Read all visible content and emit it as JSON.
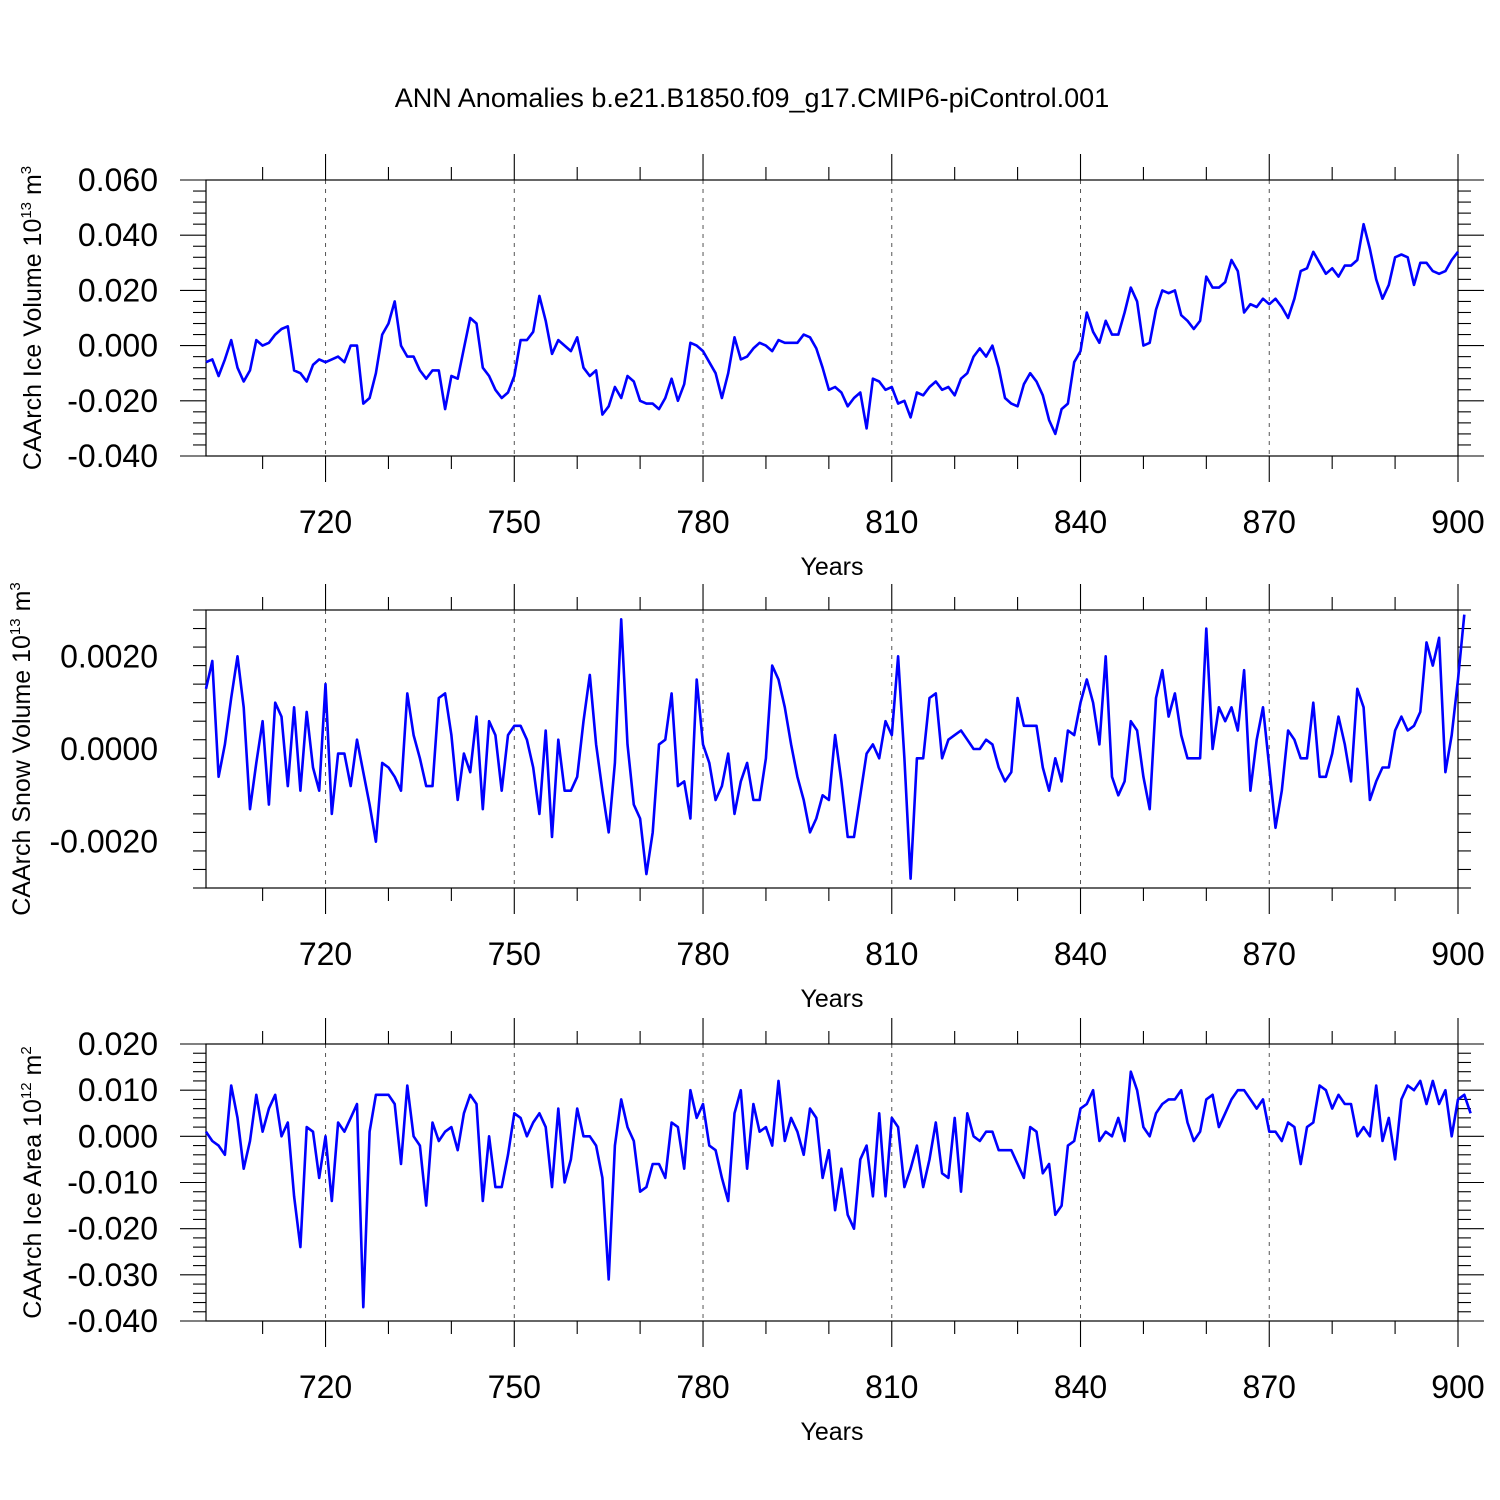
{
  "chart_data": {
    "title": "ANN Anomalies b.e21.B1850.f09_g17.CMIP6-piControl.001",
    "series_color": "#0000ff",
    "x_start": 701,
    "x_end": 900,
    "x_step": 1,
    "panels": [
      {
        "type": "line",
        "ylabel": "CAArch Ice Volume 10",
        "yunit_exp": "13",
        "yunit_tail": " m",
        "yunit_pow": "3",
        "xlabel": "Years",
        "xlim": [
          701,
          900
        ],
        "ylim": [
          -0.04,
          0.06
        ],
        "yticks": [
          -0.04,
          -0.02,
          0.0,
          0.02,
          0.04,
          0.06
        ],
        "ytick_labels": [
          "-0.040",
          "-0.020",
          "0.000",
          "0.020",
          "0.040",
          "0.060"
        ],
        "xticks": [
          720,
          750,
          780,
          810,
          840,
          870,
          900
        ],
        "xtick_labels": [
          "720",
          "750",
          "780",
          "810",
          "840",
          "870",
          "900"
        ],
        "values": [
          -0.006,
          -0.005,
          -0.011,
          -0.005,
          0.002,
          -0.008,
          -0.013,
          -0.009,
          0.002,
          0.0,
          0.001,
          0.004,
          0.006,
          0.007,
          -0.009,
          -0.01,
          -0.013,
          -0.007,
          -0.005,
          -0.006,
          -0.005,
          -0.004,
          -0.006,
          0.0,
          0.0,
          -0.021,
          -0.019,
          -0.01,
          0.004,
          0.008,
          0.016,
          0.0,
          -0.004,
          -0.004,
          -0.009,
          -0.012,
          -0.009,
          -0.009,
          -0.023,
          -0.011,
          -0.012,
          -0.001,
          0.01,
          0.008,
          -0.008,
          -0.011,
          -0.016,
          -0.019,
          -0.017,
          -0.011,
          0.002,
          0.002,
          0.005,
          0.018,
          0.009,
          -0.003,
          0.002,
          0.0,
          -0.002,
          0.003,
          -0.008,
          -0.011,
          -0.009,
          -0.025,
          -0.022,
          -0.015,
          -0.019,
          -0.011,
          -0.013,
          -0.02,
          -0.021,
          -0.021,
          -0.023,
          -0.019,
          -0.012,
          -0.02,
          -0.014,
          0.001,
          0.0,
          -0.002,
          -0.006,
          -0.01,
          -0.019,
          -0.01,
          0.003,
          -0.005,
          -0.004,
          -0.001,
          0.001,
          0.0,
          -0.002,
          0.002,
          0.001,
          0.001,
          0.001,
          0.004,
          0.003,
          -0.001,
          -0.008,
          -0.016,
          -0.015,
          -0.017,
          -0.022,
          -0.019,
          -0.017,
          -0.03,
          -0.012,
          -0.013,
          -0.016,
          -0.015,
          -0.021,
          -0.02,
          -0.026,
          -0.017,
          -0.018,
          -0.015,
          -0.013,
          -0.016,
          -0.015,
          -0.018,
          -0.012,
          -0.01,
          -0.004,
          -0.001,
          -0.004,
          0.0,
          -0.008,
          -0.019,
          -0.021,
          -0.022,
          -0.014,
          -0.01,
          -0.013,
          -0.018,
          -0.027,
          -0.032,
          -0.023,
          -0.021,
          -0.006,
          -0.002,
          0.012,
          0.005,
          0.001,
          0.009,
          0.004,
          0.004,
          0.012,
          0.021,
          0.016,
          0.0,
          0.001,
          0.013,
          0.02,
          0.019,
          0.02,
          0.011,
          0.009,
          0.006,
          0.009,
          0.025,
          0.021,
          0.021,
          0.023,
          0.031,
          0.027,
          0.012,
          0.015,
          0.014,
          0.017,
          0.015,
          0.017,
          0.014,
          0.01,
          0.017,
          0.027,
          0.028,
          0.034,
          0.03,
          0.026,
          0.028,
          0.025,
          0.029,
          0.029,
          0.031,
          0.044,
          0.035,
          0.024,
          0.017,
          0.022,
          0.032,
          0.033,
          0.032,
          0.022,
          0.03,
          0.03,
          0.027,
          0.026,
          0.027,
          0.031,
          0.034
        ]
      },
      {
        "type": "line",
        "ylabel": "CAArch Snow Volume 10",
        "yunit_exp": "13",
        "yunit_tail": " m",
        "yunit_pow": "3",
        "xlabel": "Years",
        "xlim": [
          701,
          900
        ],
        "ylim": [
          -0.003,
          0.003
        ],
        "yticks": [
          -0.002,
          0.0,
          0.002
        ],
        "ytick_labels": [
          "-0.0020",
          "0.0000",
          "0.0020"
        ],
        "xticks": [
          720,
          750,
          780,
          810,
          840,
          870,
          900
        ],
        "xtick_labels": [
          "720",
          "750",
          "780",
          "810",
          "840",
          "870",
          "900"
        ],
        "values": [
          0.0013,
          0.0019,
          -0.0006,
          0.0001,
          0.0011,
          0.002,
          0.0009,
          -0.0013,
          -0.0003,
          0.0006,
          -0.0012,
          0.001,
          0.0007,
          -0.0008,
          0.0009,
          -0.0009,
          0.0008,
          -0.0004,
          -0.0009,
          0.0014,
          -0.0014,
          -0.0001,
          -0.0001,
          -0.0008,
          0.0002,
          -0.0005,
          -0.0012,
          -0.002,
          -0.0003,
          -0.0004,
          -0.0006,
          -0.0009,
          0.0012,
          0.0003,
          -0.0002,
          -0.0008,
          -0.0008,
          0.0011,
          0.0012,
          0.0003,
          -0.0011,
          -0.0001,
          -0.0005,
          0.0007,
          -0.0013,
          0.0006,
          0.0003,
          -0.0009,
          0.0003,
          0.0005,
          0.0005,
          0.0002,
          -0.0004,
          -0.0014,
          0.0004,
          -0.0019,
          0.0002,
          -0.0009,
          -0.0009,
          -0.0006,
          0.0006,
          0.0016,
          0.0001,
          -0.0009,
          -0.0018,
          -0.0003,
          0.0028,
          0.0001,
          -0.0012,
          -0.0015,
          -0.0027,
          -0.0018,
          0.0001,
          0.0002,
          0.0012,
          -0.0008,
          -0.0007,
          -0.0015,
          0.0015,
          0.0001,
          -0.0003,
          -0.0011,
          -0.0008,
          -0.0001,
          -0.0014,
          -0.0007,
          -0.0003,
          -0.0011,
          -0.0011,
          -0.0002,
          0.0018,
          0.0015,
          0.0009,
          0.0001,
          -0.0006,
          -0.0011,
          -0.0018,
          -0.0015,
          -0.001,
          -0.0011,
          0.0003,
          -0.0007,
          -0.0019,
          -0.0019,
          -0.001,
          -0.0001,
          0.0001,
          -0.0002,
          0.0006,
          0.0003,
          0.002,
          -0.0002,
          -0.0028,
          -0.0002,
          -0.0002,
          0.0011,
          0.0012,
          -0.0002,
          0.0002,
          0.0003,
          0.0004,
          0.0002,
          0.0,
          0.0,
          0.0002,
          0.0001,
          -0.0004,
          -0.0007,
          -0.0005,
          0.0011,
          0.0005,
          0.0005,
          0.0005,
          -0.0004,
          -0.0009,
          -0.0002,
          -0.0007,
          0.0004,
          0.0003,
          0.001,
          0.0015,
          0.001,
          0.0001,
          0.002,
          -0.0006,
          -0.001,
          -0.0007,
          0.0006,
          0.0004,
          -0.0006,
          -0.0013,
          0.0011,
          0.0017,
          0.0007,
          0.0012,
          0.0003,
          -0.0002,
          -0.0002,
          -0.0002,
          0.0026,
          0.0,
          0.0009,
          0.0006,
          0.0009,
          0.0004,
          0.0017,
          -0.0009,
          0.0002,
          0.0009,
          -0.0004,
          -0.0017,
          -0.0009,
          0.0004,
          0.0002,
          -0.0002,
          -0.0002,
          0.001,
          -0.0006,
          -0.0006,
          -0.0001,
          0.0007,
          0.0001,
          -0.0007,
          0.0013,
          0.0009,
          -0.0011,
          -0.0007,
          -0.0004,
          -0.0004,
          0.0004,
          0.0007,
          0.0004,
          0.0005,
          0.0008,
          0.0023,
          0.0018,
          0.0024,
          -0.0005,
          0.0003,
          0.0015,
          0.0029
        ]
      },
      {
        "type": "line",
        "ylabel": "CAArch Ice Area 10",
        "yunit_exp": "12",
        "yunit_tail": " m",
        "yunit_pow": "2",
        "xlabel": "Years",
        "xlim": [
          701,
          900
        ],
        "ylim": [
          -0.04,
          0.02
        ],
        "yticks": [
          -0.04,
          -0.03,
          -0.02,
          -0.01,
          0.0,
          0.01,
          0.02
        ],
        "ytick_labels": [
          "-0.040",
          "-0.030",
          "-0.020",
          "-0.010",
          "0.000",
          "0.010",
          "0.020"
        ],
        "xticks": [
          720,
          750,
          780,
          810,
          840,
          870,
          900
        ],
        "xtick_labels": [
          "720",
          "750",
          "780",
          "810",
          "840",
          "870",
          "900"
        ],
        "values": [
          0.001,
          -0.001,
          -0.002,
          -0.004,
          0.011,
          0.004,
          -0.007,
          -0.001,
          0.009,
          0.001,
          0.006,
          0.009,
          0.0,
          0.003,
          -0.013,
          -0.024,
          0.002,
          0.001,
          -0.009,
          0.0,
          -0.014,
          0.003,
          0.001,
          0.004,
          0.007,
          -0.037,
          0.001,
          0.009,
          0.009,
          0.009,
          0.007,
          -0.006,
          0.011,
          0.0,
          -0.002,
          -0.015,
          0.003,
          -0.001,
          0.001,
          0.002,
          -0.003,
          0.005,
          0.009,
          0.007,
          -0.014,
          0.0,
          -0.011,
          -0.011,
          -0.004,
          0.005,
          0.004,
          0.0,
          0.003,
          0.005,
          0.002,
          -0.011,
          0.006,
          -0.01,
          -0.005,
          0.006,
          0.0,
          0.0,
          -0.002,
          -0.009,
          -0.031,
          -0.002,
          0.008,
          0.002,
          -0.001,
          -0.012,
          -0.011,
          -0.006,
          -0.006,
          -0.009,
          0.003,
          0.002,
          -0.007,
          0.01,
          0.004,
          0.007,
          -0.002,
          -0.003,
          -0.009,
          -0.014,
          0.005,
          0.01,
          -0.007,
          0.007,
          0.001,
          0.002,
          -0.002,
          0.012,
          -0.001,
          0.004,
          0.001,
          -0.004,
          0.006,
          0.004,
          -0.009,
          -0.003,
          -0.016,
          -0.007,
          -0.017,
          -0.02,
          -0.005,
          -0.002,
          -0.013,
          0.005,
          -0.013,
          0.004,
          0.002,
          -0.011,
          -0.007,
          -0.002,
          -0.011,
          -0.005,
          0.003,
          -0.008,
          -0.009,
          0.004,
          -0.012,
          0.005,
          0.0,
          -0.001,
          0.001,
          0.001,
          -0.003,
          -0.003,
          -0.003,
          -0.006,
          -0.009,
          0.002,
          0.001,
          -0.008,
          -0.006,
          -0.017,
          -0.015,
          -0.002,
          -0.001,
          0.006,
          0.007,
          0.01,
          -0.001,
          0.001,
          0.0,
          0.004,
          -0.001,
          0.014,
          0.01,
          0.002,
          0.0,
          0.005,
          0.007,
          0.008,
          0.008,
          0.01,
          0.003,
          -0.001,
          0.001,
          0.008,
          0.009,
          0.002,
          0.005,
          0.008,
          0.01,
          0.01,
          0.008,
          0.006,
          0.008,
          0.001,
          0.001,
          -0.001,
          0.003,
          0.002,
          -0.006,
          0.002,
          0.003,
          0.011,
          0.01,
          0.006,
          0.009,
          0.007,
          0.007,
          0.0,
          0.002,
          0.0,
          0.011,
          -0.001,
          0.004,
          -0.005,
          0.008,
          0.011,
          0.01,
          0.012,
          0.007,
          0.012,
          0.007,
          0.01,
          0.0,
          0.008,
          0.009,
          0.005
        ]
      }
    ]
  }
}
